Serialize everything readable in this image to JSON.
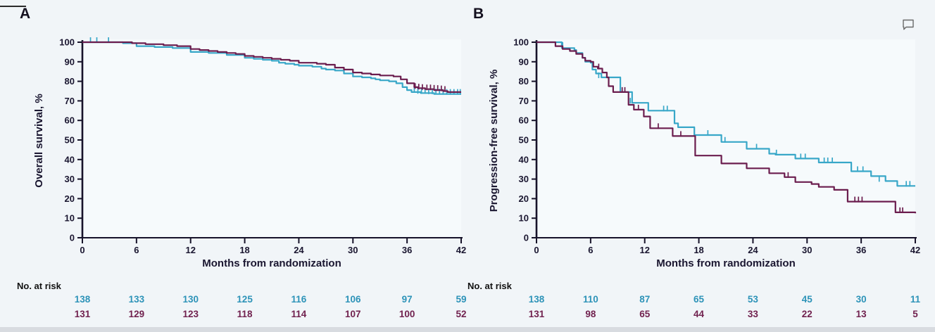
{
  "page": {
    "background": "#f1f5f8",
    "bottom_band_color": "#d8dbe0",
    "accent_teal": "#38a7c8",
    "accent_maroon": "#6b1d4e"
  },
  "icons": {
    "comment": "comment-bubble-icon"
  },
  "chart_data": [
    {
      "panel": "A",
      "type": "line",
      "subtype": "kaplan-meier-step",
      "xlabel": "Months from randomization",
      "ylabel": "Overall survival, %",
      "xlim": [
        0,
        42
      ],
      "ylim": [
        0,
        100
      ],
      "xticks": [
        0,
        6,
        12,
        18,
        24,
        30,
        36,
        42
      ],
      "yticks": [
        0,
        10,
        20,
        30,
        40,
        50,
        60,
        70,
        80,
        90,
        100
      ],
      "grid": false,
      "legend": "none",
      "series": [
        {
          "name": "arm-teal",
          "color": "#38a7c8",
          "steps": [
            [
              0,
              100
            ],
            [
              3.5,
              100
            ],
            [
              4.5,
              99.5
            ],
            [
              6,
              98
            ],
            [
              8,
              97.5
            ],
            [
              10,
              97
            ],
            [
              12,
              95
            ],
            [
              14,
              94.5
            ],
            [
              16,
              93.5
            ],
            [
              18,
              92
            ],
            [
              19,
              91.5
            ],
            [
              20,
              91
            ],
            [
              21,
              90.5
            ],
            [
              21.8,
              89.5
            ],
            [
              22.5,
              89
            ],
            [
              23.5,
              88.5
            ],
            [
              24,
              88
            ],
            [
              25.5,
              87.5
            ],
            [
              26.5,
              86.5
            ],
            [
              27,
              86
            ],
            [
              28,
              85.5
            ],
            [
              29,
              84
            ],
            [
              30,
              82.5
            ],
            [
              31,
              82
            ],
            [
              32,
              81.5
            ],
            [
              32.5,
              81
            ],
            [
              33,
              80.5
            ],
            [
              34,
              80
            ],
            [
              34.8,
              79
            ],
            [
              35.5,
              77
            ],
            [
              36,
              75.5
            ],
            [
              36.5,
              74.5
            ],
            [
              37.5,
              74
            ],
            [
              39,
              73.5
            ],
            [
              42,
              73.5
            ]
          ],
          "censor_marks": [
            [
              0.9,
              100
            ],
            [
              1.6,
              100
            ],
            [
              2.9,
              100
            ],
            [
              36.8,
              74.5
            ],
            [
              37.2,
              74
            ],
            [
              37.6,
              74
            ],
            [
              38,
              74
            ],
            [
              38.4,
              73.8
            ],
            [
              38.8,
              73.8
            ],
            [
              39.2,
              73.7
            ],
            [
              39.6,
              73.7
            ],
            [
              40,
              73.5
            ],
            [
              40.4,
              73.5
            ],
            [
              40.8,
              73.5
            ],
            [
              41.2,
              73.5
            ],
            [
              41.6,
              73.5
            ],
            [
              41.9,
              73.5
            ]
          ]
        },
        {
          "name": "arm-maroon",
          "color": "#6b1d4e",
          "steps": [
            [
              0,
              100
            ],
            [
              4.5,
              100
            ],
            [
              5.5,
              99.5
            ],
            [
              7,
              99
            ],
            [
              9,
              98.5
            ],
            [
              10.5,
              98
            ],
            [
              12,
              96.5
            ],
            [
              13,
              96
            ],
            [
              14,
              95.5
            ],
            [
              15,
              95
            ],
            [
              16,
              94.5
            ],
            [
              17,
              94
            ],
            [
              18,
              93
            ],
            [
              19,
              92.5
            ],
            [
              20,
              92
            ],
            [
              21,
              91.5
            ],
            [
              22,
              91
            ],
            [
              23,
              90.5
            ],
            [
              24,
              89.5
            ],
            [
              26,
              89
            ],
            [
              27,
              88.5
            ],
            [
              28,
              87
            ],
            [
              29,
              86
            ],
            [
              30,
              84.5
            ],
            [
              31,
              84
            ],
            [
              32,
              83.5
            ],
            [
              33,
              83
            ],
            [
              34.5,
              82.5
            ],
            [
              35.3,
              81
            ],
            [
              36,
              79
            ],
            [
              36.8,
              77
            ],
            [
              37.2,
              76.5
            ],
            [
              38,
              76
            ],
            [
              39,
              75.5
            ],
            [
              40,
              75
            ],
            [
              40.5,
              74.5
            ],
            [
              42,
              74.5
            ]
          ],
          "censor_marks": [
            [
              36.9,
              76.5
            ],
            [
              37.3,
              76.2
            ],
            [
              37.7,
              76
            ],
            [
              38.2,
              75.8
            ],
            [
              38.6,
              75.8
            ],
            [
              39,
              75.6
            ],
            [
              39.4,
              75.5
            ],
            [
              39.8,
              75.3
            ],
            [
              40.2,
              75
            ]
          ]
        }
      ],
      "no_at_risk": {
        "label": "No. at risk",
        "months": [
          0,
          6,
          12,
          18,
          24,
          30,
          36,
          42
        ],
        "rows": [
          {
            "name": "arm-teal",
            "color": "#2d93b8",
            "values": [
              138,
              133,
              130,
              125,
              116,
              106,
              97,
              59
            ]
          },
          {
            "name": "arm-maroon",
            "color": "#71224f",
            "values": [
              131,
              129,
              123,
              118,
              114,
              107,
              100,
              52
            ]
          }
        ]
      }
    },
    {
      "panel": "B",
      "type": "line",
      "subtype": "kaplan-meier-step",
      "xlabel": "Months from randomization",
      "ylabel": "Progression-free survival, %",
      "xlim": [
        0,
        42
      ],
      "ylim": [
        0,
        100
      ],
      "xticks": [
        0,
        6,
        12,
        18,
        24,
        30,
        36,
        42
      ],
      "yticks": [
        0,
        10,
        20,
        30,
        40,
        50,
        60,
        70,
        80,
        90,
        100
      ],
      "grid": false,
      "legend": "none",
      "series": [
        {
          "name": "arm-teal",
          "color": "#38a7c8",
          "steps": [
            [
              0,
              100
            ],
            [
              2.6,
              100
            ],
            [
              2.8,
              97
            ],
            [
              4.2,
              96
            ],
            [
              4.4,
              94.5
            ],
            [
              5.1,
              92
            ],
            [
              5.4,
              90
            ],
            [
              6,
              89.5
            ],
            [
              6.2,
              86
            ],
            [
              6.6,
              84
            ],
            [
              7.2,
              82
            ],
            [
              9.3,
              74.5
            ],
            [
              10.6,
              69
            ],
            [
              12.4,
              65
            ],
            [
              15.3,
              58.5
            ],
            [
              15.7,
              56.5
            ],
            [
              17.5,
              52.5
            ],
            [
              20.5,
              49
            ],
            [
              23.3,
              45.5
            ],
            [
              25.8,
              43
            ],
            [
              26.5,
              42.5
            ],
            [
              28.7,
              40.5
            ],
            [
              31.3,
              38.5
            ],
            [
              34.9,
              34
            ],
            [
              37.1,
              31.5
            ],
            [
              38.7,
              29
            ],
            [
              40,
              26.5
            ],
            [
              42,
              26.5
            ]
          ],
          "censor_marks": [
            [
              2.9,
              97.5
            ],
            [
              6.9,
              82
            ],
            [
              10.4,
              69
            ],
            [
              14.1,
              65
            ],
            [
              14.5,
              65
            ],
            [
              19,
              52.5
            ],
            [
              20.9,
              49
            ],
            [
              24.4,
              45.5
            ],
            [
              26.6,
              42.5
            ],
            [
              29.3,
              40.5
            ],
            [
              29.8,
              40.5
            ],
            [
              31.9,
              38.5
            ],
            [
              32.3,
              38.5
            ],
            [
              32.8,
              38.5
            ],
            [
              35.6,
              34
            ],
            [
              36.2,
              34
            ],
            [
              38,
              29
            ],
            [
              41,
              26.5
            ],
            [
              41.4,
              26.5
            ]
          ]
        },
        {
          "name": "arm-maroon",
          "color": "#6b1d4e",
          "steps": [
            [
              0,
              100
            ],
            [
              2,
              100
            ],
            [
              2.1,
              98
            ],
            [
              2.9,
              96.5
            ],
            [
              3.7,
              95.5
            ],
            [
              4.4,
              94
            ],
            [
              5.1,
              92
            ],
            [
              5.4,
              90.5
            ],
            [
              6,
              90
            ],
            [
              6.3,
              87.5
            ],
            [
              6.8,
              86.5
            ],
            [
              7.3,
              84.5
            ],
            [
              7.8,
              82
            ],
            [
              8,
              77.5
            ],
            [
              8.5,
              74.5
            ],
            [
              10.2,
              68
            ],
            [
              10.8,
              65.5
            ],
            [
              11.9,
              62
            ],
            [
              12.6,
              56
            ],
            [
              15.1,
              52
            ],
            [
              17.6,
              42
            ],
            [
              20.5,
              38
            ],
            [
              23.3,
              35.5
            ],
            [
              25.8,
              33
            ],
            [
              27.5,
              31
            ],
            [
              28.7,
              28.5
            ],
            [
              30.5,
              27.5
            ],
            [
              31.3,
              26
            ],
            [
              33,
              24.5
            ],
            [
              34.5,
              18.5
            ],
            [
              39.8,
              13
            ],
            [
              42,
              12.5
            ]
          ],
          "censor_marks": [
            [
              6.9,
              86.5
            ],
            [
              9.5,
              74.5
            ],
            [
              9.8,
              74.5
            ],
            [
              11.3,
              65.5
            ],
            [
              13.5,
              56
            ],
            [
              16,
              52
            ],
            [
              27.9,
              31
            ],
            [
              35.3,
              18.5
            ],
            [
              35.7,
              18.5
            ],
            [
              36.1,
              18.5
            ],
            [
              40.3,
              13
            ],
            [
              40.6,
              13
            ]
          ]
        }
      ],
      "no_at_risk": {
        "label": "No. at risk",
        "months": [
          0,
          6,
          12,
          18,
          24,
          30,
          36,
          42
        ],
        "rows": [
          {
            "name": "arm-teal",
            "color": "#2d93b8",
            "values": [
              138,
              110,
              87,
              65,
              53,
              45,
              30,
              11
            ]
          },
          {
            "name": "arm-maroon",
            "color": "#71224f",
            "values": [
              131,
              98,
              65,
              44,
              33,
              22,
              13,
              5
            ]
          }
        ]
      }
    }
  ]
}
